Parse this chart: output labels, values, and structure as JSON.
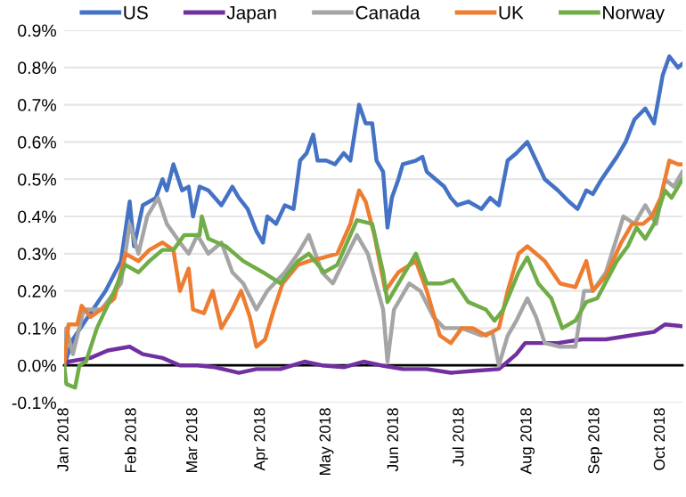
{
  "chart_data": {
    "type": "line",
    "series": [
      {
        "name": "US",
        "color": "#4472c4",
        "x": [
          "2018-01-01",
          "2018-01-05",
          "2018-01-13",
          "2018-01-20",
          "2018-01-27",
          "2018-01-31",
          "2018-02-02",
          "2018-02-06",
          "2018-02-12",
          "2018-02-15",
          "2018-02-17",
          "2018-02-20",
          "2018-02-24",
          "2018-02-27",
          "2018-03-01",
          "2018-03-04",
          "2018-03-08",
          "2018-03-14",
          "2018-03-19",
          "2018-03-22",
          "2018-03-26",
          "2018-03-30",
          "2018-04-02",
          "2018-04-04",
          "2018-04-08",
          "2018-04-12",
          "2018-04-16",
          "2018-04-19",
          "2018-04-22",
          "2018-04-25",
          "2018-04-27",
          "2018-05-01",
          "2018-05-05",
          "2018-05-09",
          "2018-05-12",
          "2018-05-16",
          "2018-05-19",
          "2018-05-22",
          "2018-05-24",
          "2018-05-27",
          "2018-05-29",
          "2018-05-31",
          "2018-06-03",
          "2018-06-05",
          "2018-06-11",
          "2018-06-14",
          "2018-06-16",
          "2018-06-20",
          "2018-06-24",
          "2018-06-27",
          "2018-06-30",
          "2018-07-05",
          "2018-07-11",
          "2018-07-15",
          "2018-07-19",
          "2018-07-23",
          "2018-07-27",
          "2018-08-01",
          "2018-08-05",
          "2018-08-09",
          "2018-08-15",
          "2018-08-20",
          "2018-08-24",
          "2018-08-28",
          "2018-08-31",
          "2018-09-04",
          "2018-09-11",
          "2018-09-15",
          "2018-09-19",
          "2018-09-24",
          "2018-09-28",
          "2018-10-02",
          "2018-10-05",
          "2018-10-09",
          "2018-10-11"
        ],
        "values": [
          0.0,
          0.07,
          0.14,
          0.2,
          0.28,
          0.44,
          0.32,
          0.43,
          0.45,
          0.5,
          0.47,
          0.54,
          0.47,
          0.48,
          0.4,
          0.48,
          0.47,
          0.43,
          0.48,
          0.45,
          0.42,
          0.36,
          0.33,
          0.4,
          0.38,
          0.43,
          0.42,
          0.55,
          0.57,
          0.62,
          0.55,
          0.55,
          0.54,
          0.57,
          0.55,
          0.7,
          0.65,
          0.65,
          0.55,
          0.52,
          0.37,
          0.45,
          0.5,
          0.54,
          0.55,
          0.56,
          0.52,
          0.5,
          0.48,
          0.45,
          0.43,
          0.44,
          0.42,
          0.45,
          0.43,
          0.55,
          0.57,
          0.6,
          0.55,
          0.5,
          0.47,
          0.44,
          0.42,
          0.47,
          0.46,
          0.5,
          0.56,
          0.6,
          0.66,
          0.69,
          0.65,
          0.78,
          0.83,
          0.8,
          0.81
        ]
      },
      {
        "name": "Japan",
        "color": "#7030a0",
        "x": [
          "2018-01-01",
          "2018-01-03",
          "2018-01-13",
          "2018-01-21",
          "2018-01-31",
          "2018-02-06",
          "2018-02-15",
          "2018-02-23",
          "2018-03-03",
          "2018-03-11",
          "2018-03-22",
          "2018-03-30",
          "2018-04-10",
          "2018-04-21",
          "2018-04-29",
          "2018-05-09",
          "2018-05-18",
          "2018-05-26",
          "2018-06-05",
          "2018-06-16",
          "2018-06-27",
          "2018-07-07",
          "2018-07-19",
          "2018-07-21",
          "2018-07-27",
          "2018-07-31",
          "2018-08-04",
          "2018-08-15",
          "2018-08-26",
          "2018-09-06",
          "2018-09-17",
          "2018-09-28",
          "2018-10-03",
          "2018-10-11"
        ],
        "values": [
          0.0,
          0.01,
          0.02,
          0.04,
          0.05,
          0.03,
          0.02,
          0.0,
          0.0,
          -0.005,
          -0.02,
          -0.01,
          -0.01,
          0.01,
          0.0,
          -0.005,
          0.01,
          0.0,
          -0.01,
          -0.01,
          -0.02,
          -0.015,
          -0.01,
          0.0,
          0.03,
          0.06,
          0.06,
          0.06,
          0.07,
          0.07,
          0.08,
          0.09,
          0.11,
          0.105
        ]
      },
      {
        "name": "Canada",
        "color": "#a5a5a5",
        "x": [
          "2018-01-01",
          "2018-01-02",
          "2018-01-05",
          "2018-01-10",
          "2018-01-18",
          "2018-01-27",
          "2018-01-31",
          "2018-02-04",
          "2018-02-08",
          "2018-02-13",
          "2018-02-17",
          "2018-02-23",
          "2018-02-27",
          "2018-03-03",
          "2018-03-08",
          "2018-03-14",
          "2018-03-19",
          "2018-03-24",
          "2018-03-30",
          "2018-04-04",
          "2018-04-12",
          "2018-04-18",
          "2018-04-23",
          "2018-04-29",
          "2018-05-04",
          "2018-05-09",
          "2018-05-15",
          "2018-05-20",
          "2018-05-27",
          "2018-05-29",
          "2018-06-01",
          "2018-06-08",
          "2018-06-13",
          "2018-06-19",
          "2018-06-24",
          "2018-07-02",
          "2018-07-11",
          "2018-07-16",
          "2018-07-19",
          "2018-07-23",
          "2018-07-27",
          "2018-08-01",
          "2018-08-05",
          "2018-08-09",
          "2018-08-16",
          "2018-08-23",
          "2018-08-27",
          "2018-08-31",
          "2018-09-06",
          "2018-09-14",
          "2018-09-19",
          "2018-09-24",
          "2018-09-29",
          "2018-10-03",
          "2018-10-07",
          "2018-10-11"
        ],
        "values": [
          0.0,
          0.1,
          0.03,
          0.15,
          0.15,
          0.22,
          0.38,
          0.3,
          0.4,
          0.45,
          0.38,
          0.33,
          0.3,
          0.35,
          0.3,
          0.33,
          0.25,
          0.22,
          0.15,
          0.2,
          0.25,
          0.3,
          0.35,
          0.25,
          0.22,
          0.28,
          0.35,
          0.3,
          0.15,
          0.01,
          0.15,
          0.22,
          0.2,
          0.13,
          0.1,
          0.1,
          0.08,
          0.09,
          0.0,
          0.08,
          0.12,
          0.18,
          0.13,
          0.06,
          0.05,
          0.05,
          0.2,
          0.2,
          0.25,
          0.4,
          0.38,
          0.43,
          0.38,
          0.5,
          0.48,
          0.52
        ]
      },
      {
        "name": "UK",
        "color": "#ed7d31",
        "x": [
          "2018-01-01",
          "2018-01-03",
          "2018-01-07",
          "2018-01-09",
          "2018-01-13",
          "2018-01-18",
          "2018-01-24",
          "2018-01-29",
          "2018-02-04",
          "2018-02-09",
          "2018-02-15",
          "2018-02-20",
          "2018-02-23",
          "2018-02-27",
          "2018-03-01",
          "2018-03-06",
          "2018-03-10",
          "2018-03-14",
          "2018-03-19",
          "2018-03-23",
          "2018-03-27",
          "2018-03-30",
          "2018-04-03",
          "2018-04-07",
          "2018-04-11",
          "2018-04-18",
          "2018-04-23",
          "2018-04-30",
          "2018-05-06",
          "2018-05-12",
          "2018-05-16",
          "2018-05-19",
          "2018-05-23",
          "2018-05-28",
          "2018-06-03",
          "2018-06-11",
          "2018-06-16",
          "2018-06-22",
          "2018-06-27",
          "2018-07-02",
          "2018-07-07",
          "2018-07-13",
          "2018-07-19",
          "2018-07-23",
          "2018-07-28",
          "2018-08-01",
          "2018-08-05",
          "2018-08-09",
          "2018-08-16",
          "2018-08-23",
          "2018-08-28",
          "2018-08-31",
          "2018-09-06",
          "2018-09-13",
          "2018-09-18",
          "2018-09-23",
          "2018-09-27",
          "2018-10-01",
          "2018-10-05",
          "2018-10-09",
          "2018-10-11"
        ],
        "values": [
          0.0,
          0.11,
          0.11,
          0.16,
          0.13,
          0.15,
          0.18,
          0.3,
          0.28,
          0.31,
          0.33,
          0.31,
          0.2,
          0.26,
          0.15,
          0.14,
          0.2,
          0.1,
          0.15,
          0.2,
          0.13,
          0.05,
          0.07,
          0.15,
          0.22,
          0.27,
          0.28,
          0.29,
          0.3,
          0.38,
          0.47,
          0.44,
          0.35,
          0.2,
          0.25,
          0.28,
          0.2,
          0.08,
          0.06,
          0.1,
          0.1,
          0.08,
          0.1,
          0.2,
          0.3,
          0.32,
          0.3,
          0.28,
          0.22,
          0.21,
          0.28,
          0.2,
          0.24,
          0.33,
          0.38,
          0.38,
          0.4,
          0.45,
          0.55,
          0.54,
          0.54
        ]
      },
      {
        "name": "Norway",
        "color": "#70ad47",
        "x": [
          "2018-01-01",
          "2018-01-02",
          "2018-01-06",
          "2018-01-08",
          "2018-01-11",
          "2018-01-16",
          "2018-01-24",
          "2018-01-29",
          "2018-02-04",
          "2018-02-09",
          "2018-02-15",
          "2018-02-20",
          "2018-02-25",
          "2018-03-04",
          "2018-03-05",
          "2018-03-08",
          "2018-03-16",
          "2018-03-24",
          "2018-04-02",
          "2018-04-10",
          "2018-04-18",
          "2018-04-23",
          "2018-04-30",
          "2018-05-06",
          "2018-05-12",
          "2018-05-15",
          "2018-05-22",
          "2018-05-27",
          "2018-05-29",
          "2018-06-05",
          "2018-06-11",
          "2018-06-16",
          "2018-06-23",
          "2018-06-28",
          "2018-07-05",
          "2018-07-13",
          "2018-07-17",
          "2018-07-21",
          "2018-07-28",
          "2018-08-01",
          "2018-08-06",
          "2018-08-12",
          "2018-08-17",
          "2018-08-23",
          "2018-08-28",
          "2018-09-02",
          "2018-09-11",
          "2018-09-16",
          "2018-09-20",
          "2018-09-24",
          "2018-09-28",
          "2018-10-03",
          "2018-10-06",
          "2018-10-11"
        ],
        "values": [
          0.0,
          -0.05,
          -0.06,
          0.0,
          0.01,
          0.1,
          0.2,
          0.27,
          0.25,
          0.28,
          0.31,
          0.31,
          0.35,
          0.35,
          0.4,
          0.34,
          0.32,
          0.28,
          0.25,
          0.22,
          0.28,
          0.3,
          0.25,
          0.27,
          0.35,
          0.39,
          0.38,
          0.25,
          0.17,
          0.24,
          0.3,
          0.22,
          0.22,
          0.23,
          0.17,
          0.15,
          0.12,
          0.15,
          0.25,
          0.29,
          0.22,
          0.18,
          0.1,
          0.12,
          0.17,
          0.18,
          0.28,
          0.32,
          0.37,
          0.34,
          0.38,
          0.47,
          0.45,
          0.5
        ]
      }
    ],
    "xlim": [
      "2018-01-01",
      "2018-10-11"
    ],
    "xticks": [
      {
        "value": "2018-01-01",
        "label": "Jan 2018"
      },
      {
        "value": "2018-02-01",
        "label": "Feb 2018"
      },
      {
        "value": "2018-03-01",
        "label": "Mar 2018"
      },
      {
        "value": "2018-04-01",
        "label": "Apr 2018"
      },
      {
        "value": "2018-05-01",
        "label": "May 2018"
      },
      {
        "value": "2018-06-01",
        "label": "Jun 2018"
      },
      {
        "value": "2018-07-01",
        "label": "Jul 2018"
      },
      {
        "value": "2018-08-01",
        "label": "Aug 2018"
      },
      {
        "value": "2018-09-01",
        "label": "Sep 2018"
      },
      {
        "value": "2018-10-01",
        "label": "Oct 2018"
      }
    ],
    "ylim": [
      -0.1,
      0.9
    ],
    "yticks": [
      {
        "value": -0.1,
        "label": "-0.1%"
      },
      {
        "value": 0.0,
        "label": "0.0%"
      },
      {
        "value": 0.1,
        "label": "0.1%"
      },
      {
        "value": 0.2,
        "label": "0.2%"
      },
      {
        "value": 0.3,
        "label": "0.3%"
      },
      {
        "value": 0.4,
        "label": "0.4%"
      },
      {
        "value": 0.5,
        "label": "0.5%"
      },
      {
        "value": 0.6,
        "label": "0.6%"
      },
      {
        "value": 0.7,
        "label": "0.7%"
      },
      {
        "value": 0.8,
        "label": "0.8%"
      },
      {
        "value": 0.9,
        "label": "0.9%"
      }
    ],
    "grid": "y",
    "legend": "top",
    "marker": "none",
    "line_style": "solid"
  }
}
